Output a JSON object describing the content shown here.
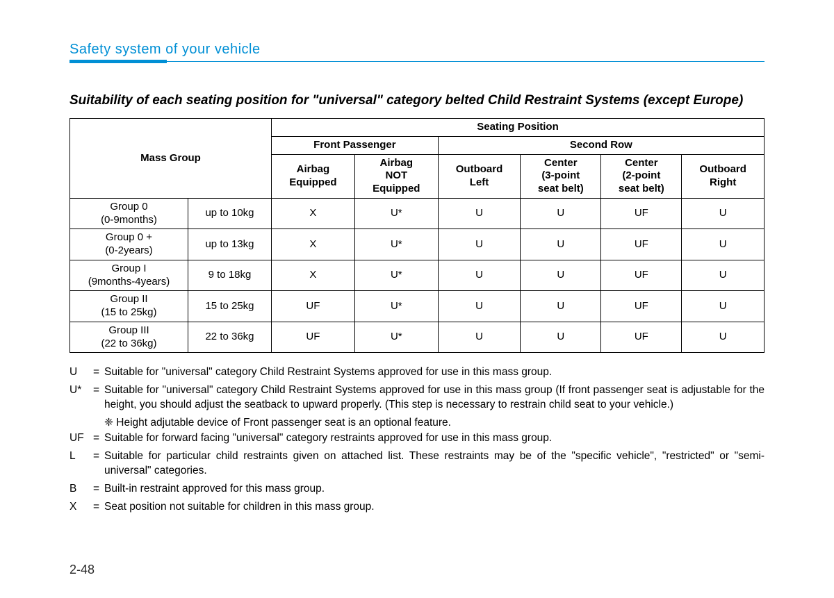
{
  "section_header": "Safety system of your vehicle",
  "title": "Suitability of each seating position for \"universal\" category belted Child Restraint Systems (except Europe)",
  "table": {
    "top_header": "Seating Position",
    "mass_group_header": "Mass Group",
    "front_passenger_header": "Front Passenger",
    "second_row_header": "Second Row",
    "cols": {
      "airbag_eq": "Airbag Equipped",
      "airbag_not": "Airbag NOT Equipped",
      "outboard_left": "Outboard Left",
      "center_3pt": "Center (3-point seat belt)",
      "center_2pt": "Center (2-point seat belt)",
      "outboard_right": "Outboard Right"
    },
    "rows": [
      {
        "name": "Group 0\n(0-9months)",
        "weight": "up to 10kg",
        "vals": [
          "X",
          "U*",
          "U",
          "U",
          "UF",
          "U"
        ]
      },
      {
        "name": "Group 0 +\n(0-2years)",
        "weight": "up to 13kg",
        "vals": [
          "X",
          "U*",
          "U",
          "U",
          "UF",
          "U"
        ]
      },
      {
        "name": "Group I\n(9months-4years)",
        "weight": "9 to 18kg",
        "vals": [
          "X",
          "U*",
          "U",
          "U",
          "UF",
          "U"
        ]
      },
      {
        "name": "Group II\n(15 to 25kg)",
        "weight": "15 to 25kg",
        "vals": [
          "UF",
          "U*",
          "U",
          "U",
          "UF",
          "U"
        ]
      },
      {
        "name": "Group III\n(22 to 36kg)",
        "weight": "22 to 36kg",
        "vals": [
          "UF",
          "U*",
          "U",
          "U",
          "UF",
          "U"
        ]
      }
    ]
  },
  "legend": [
    {
      "code": "U",
      "text": "Suitable for \"universal\" category Child Restraint Systems approved for use in this mass group."
    },
    {
      "code": "U*",
      "text": "Suitable for \"universal\" category Child Restraint Systems approved for use in this mass group (If front passenger seat is adjustable for the height, you should adjust the seatback to upward properly. (This step is necessary to restrain child seat to your vehicle.)"
    },
    {
      "code": "",
      "note": "❈ Height adjutable device of Front passenger seat is an optional feature."
    },
    {
      "code": "UF",
      "text": " Suitable for forward facing \"universal\" category restraints approved for use in this mass group."
    },
    {
      "code": "L",
      "text": "Suitable for particular child restraints given on attached list. These restraints may be of the \"specific vehicle\", \"restricted\" or \"semi-universal\" categories."
    },
    {
      "code": "B",
      "text": "Built-in restraint approved for this mass group."
    },
    {
      "code": "X",
      "text": "Seat position not suitable for children in this mass group."
    }
  ],
  "page_number": "2-48",
  "colors": {
    "accent": "#008fd5",
    "text": "#000000",
    "background": "#ffffff"
  }
}
